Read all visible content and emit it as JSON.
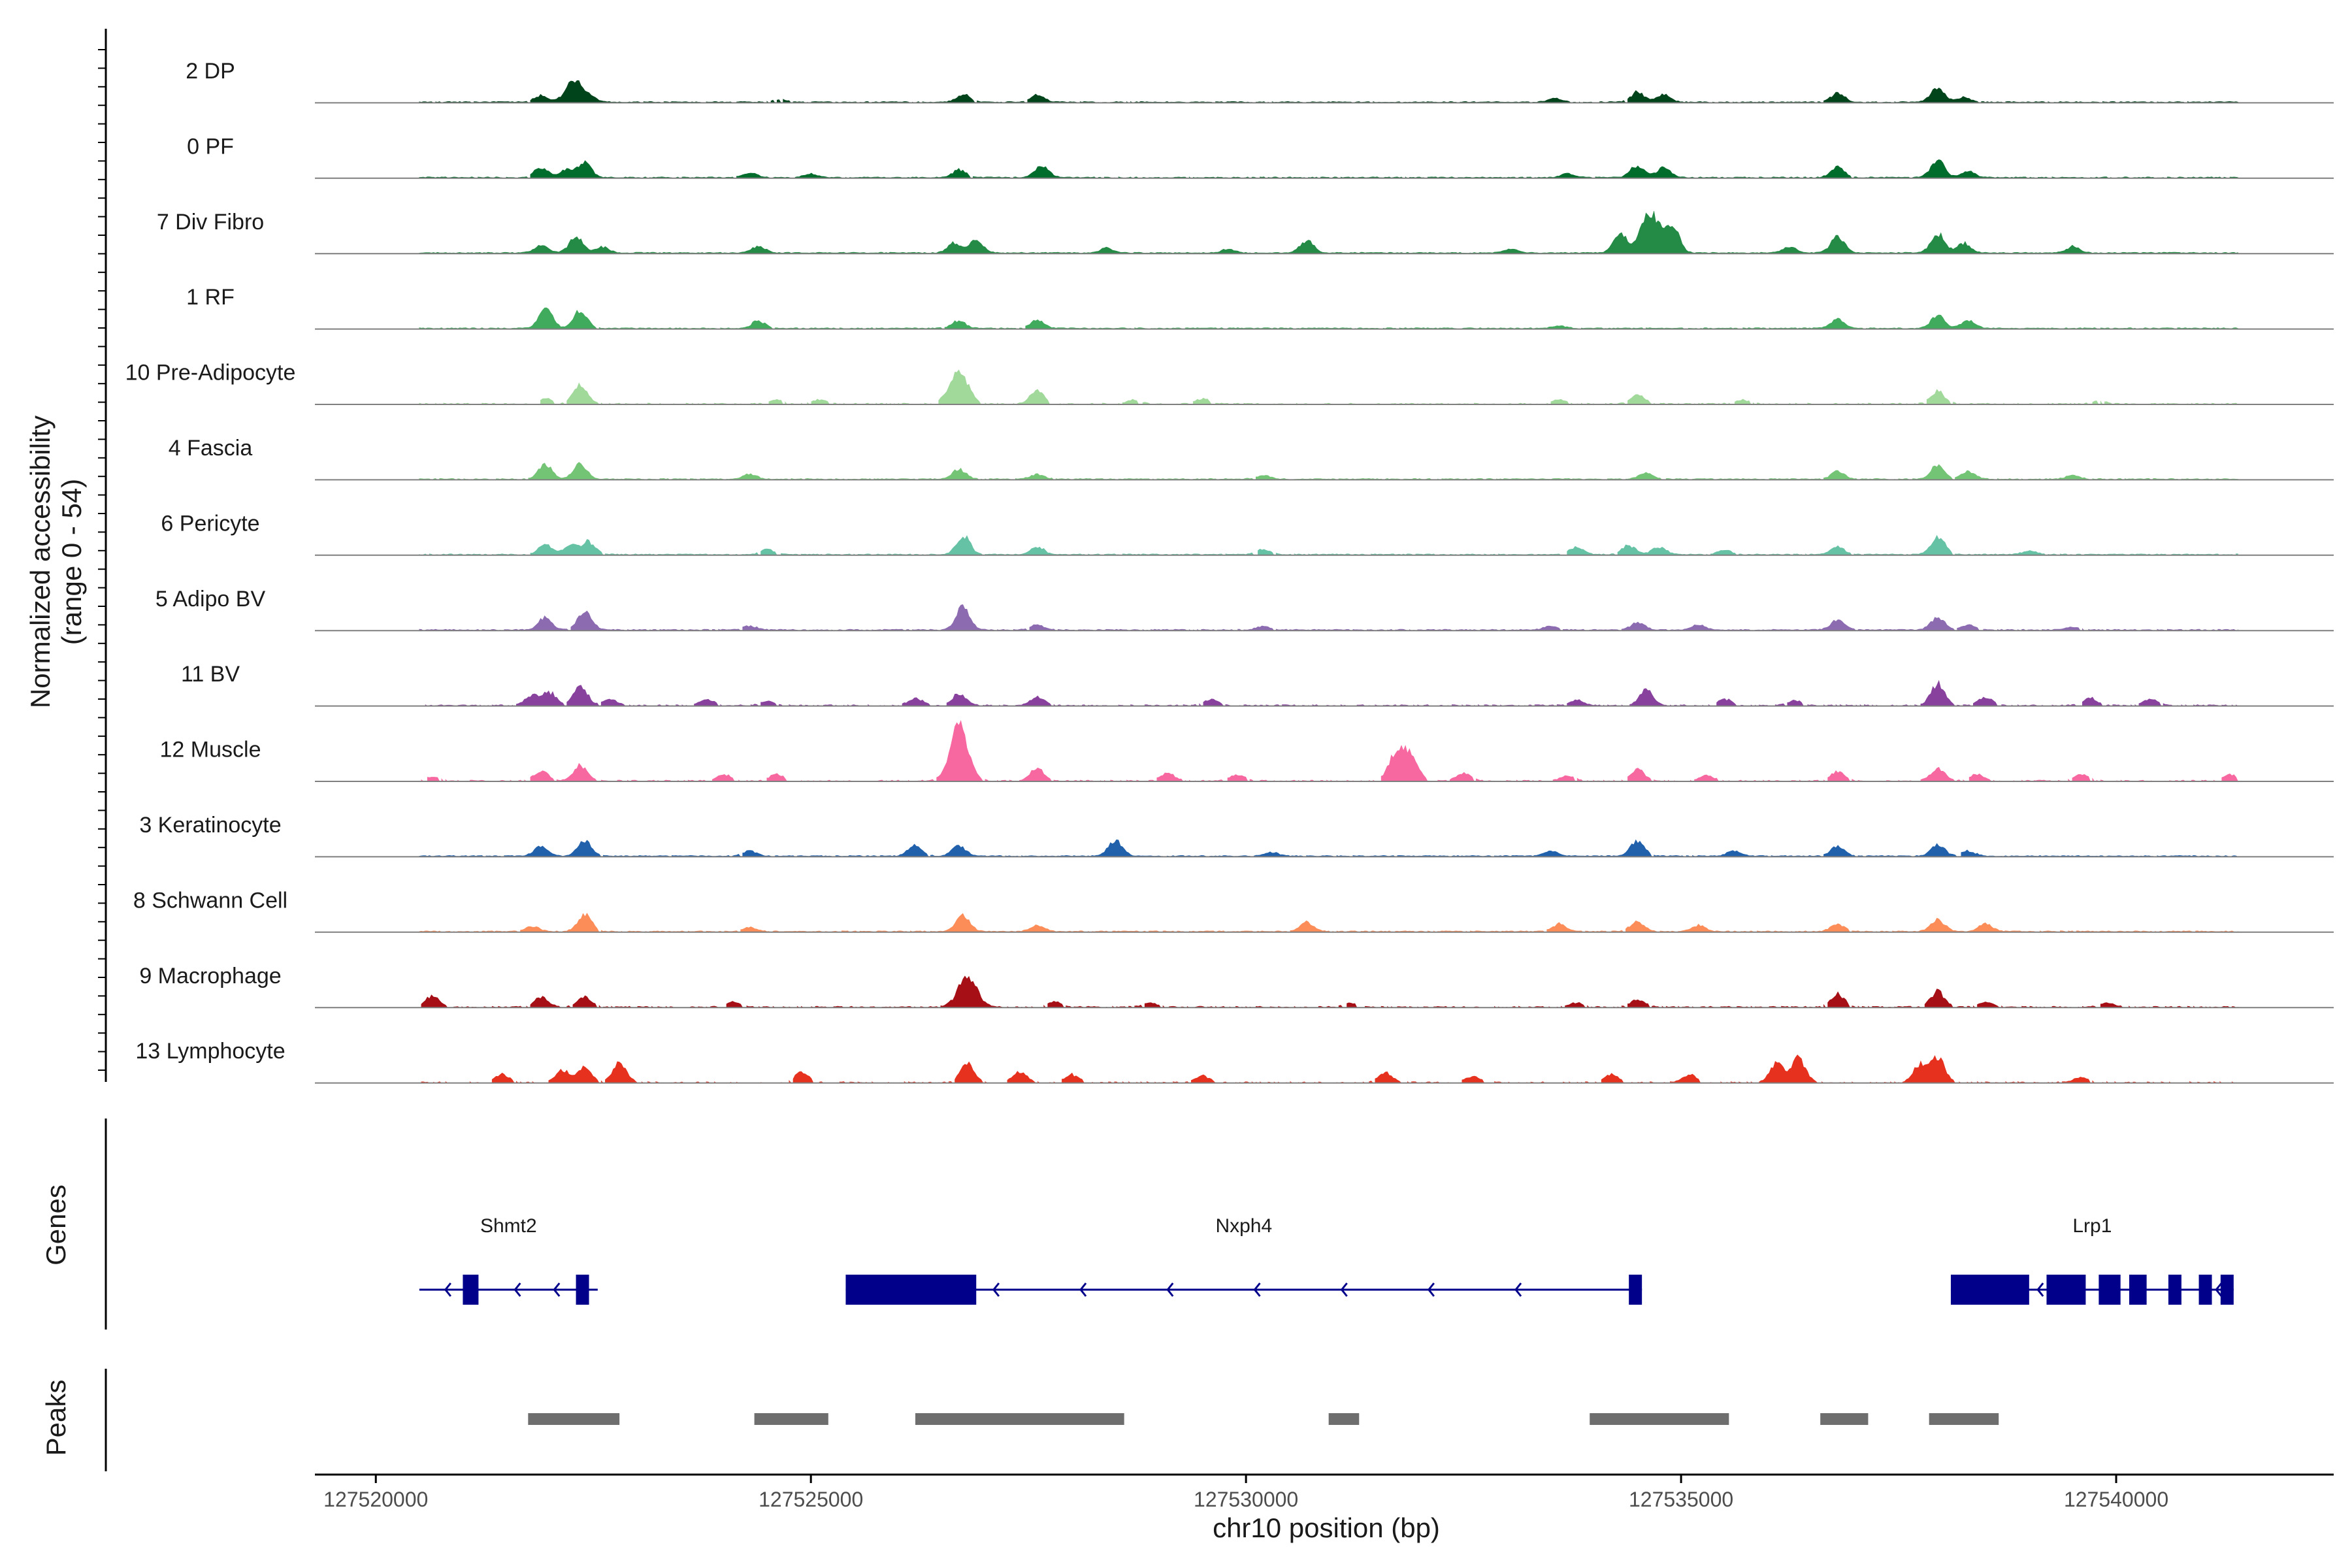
{
  "chart_data": {
    "type": "area",
    "title": "",
    "region": {
      "chrom": "chr10",
      "start": 127519300,
      "end": 127542500
    },
    "xlabel": "chr10 position (bp)",
    "x_ticks": [
      127520000,
      127525000,
      127530000,
      127535000,
      127540000
    ],
    "ylabel_line1": "Normalized accessibility",
    "ylabel_line2": "(range 0 - 54)",
    "ylim": [
      0,
      54
    ],
    "panel_labels": {
      "genes": "Genes",
      "peaks": "Peaks"
    },
    "tracks": [
      {
        "name": "2 DP",
        "color": "#00441b",
        "density": 0.9,
        "peaks": [
          [
            127521900,
            5
          ],
          [
            127522200,
            6
          ],
          [
            127522300,
            14
          ],
          [
            127522450,
            5
          ],
          [
            127524650,
            2
          ],
          [
            127526750,
            6
          ],
          [
            127527600,
            6
          ],
          [
            127533550,
            3
          ],
          [
            127534500,
            8
          ],
          [
            127534800,
            6
          ],
          [
            127536800,
            7
          ],
          [
            127537950,
            12
          ],
          [
            127538250,
            4
          ]
        ]
      },
      {
        "name": "0 PF",
        "color": "#006d2c",
        "density": 0.9,
        "peaks": [
          [
            127521900,
            8
          ],
          [
            127522200,
            6
          ],
          [
            127522400,
            12
          ],
          [
            127524300,
            4
          ],
          [
            127525000,
            3
          ],
          [
            127526700,
            6
          ],
          [
            127527650,
            10
          ],
          [
            127533700,
            3
          ],
          [
            127534500,
            10
          ],
          [
            127534800,
            8
          ],
          [
            127536800,
            8
          ],
          [
            127537950,
            14
          ],
          [
            127538300,
            5
          ]
        ]
      },
      {
        "name": "7 Div Fibro",
        "color": "#238b45",
        "density": 1.0,
        "peaks": [
          [
            127521900,
            6
          ],
          [
            127522300,
            13
          ],
          [
            127522600,
            5
          ],
          [
            127524400,
            5
          ],
          [
            127526650,
            8
          ],
          [
            127526900,
            10
          ],
          [
            127528400,
            4
          ],
          [
            127529800,
            3
          ],
          [
            127530700,
            10
          ],
          [
            127533050,
            3
          ],
          [
            127534300,
            15
          ],
          [
            127534650,
            32
          ],
          [
            127534900,
            20
          ],
          [
            127536250,
            5
          ],
          [
            127536800,
            13
          ],
          [
            127537950,
            16
          ],
          [
            127538250,
            8
          ],
          [
            127539500,
            5
          ]
        ]
      },
      {
        "name": "1 RF",
        "color": "#41ab5d",
        "density": 0.95,
        "peaks": [
          [
            127521950,
            16
          ],
          [
            127522350,
            14
          ],
          [
            127524400,
            6
          ],
          [
            127526700,
            6
          ],
          [
            127527600,
            7
          ],
          [
            127536800,
            7
          ],
          [
            127537950,
            10
          ],
          [
            127538300,
            6
          ],
          [
            127533600,
            2
          ]
        ]
      },
      {
        "name": "10 Pre-Adipocyte",
        "color": "#a1d99b",
        "density": 0.5,
        "peaks": [
          [
            127521950,
            4
          ],
          [
            127522350,
            16
          ],
          [
            127524600,
            3
          ],
          [
            127525100,
            3
          ],
          [
            127526700,
            26
          ],
          [
            127527600,
            10
          ],
          [
            127528700,
            3
          ],
          [
            127529500,
            4
          ],
          [
            127533600,
            3
          ],
          [
            127534500,
            7
          ],
          [
            127535700,
            3
          ],
          [
            127537950,
            10
          ],
          [
            127539800,
            2
          ]
        ]
      },
      {
        "name": "4 Fascia",
        "color": "#74c476",
        "density": 0.9,
        "peaks": [
          [
            127521950,
            12
          ],
          [
            127522350,
            12
          ],
          [
            127524300,
            4
          ],
          [
            127526700,
            8
          ],
          [
            127527600,
            4
          ],
          [
            127530200,
            3
          ],
          [
            127534600,
            5
          ],
          [
            127536800,
            6
          ],
          [
            127537950,
            11
          ],
          [
            127538300,
            6
          ],
          [
            127539500,
            3
          ]
        ]
      },
      {
        "name": "6 Pericyte",
        "color": "#66c2a4",
        "density": 0.9,
        "peaks": [
          [
            127521950,
            8
          ],
          [
            127522250,
            8
          ],
          [
            127522450,
            10
          ],
          [
            127524500,
            4
          ],
          [
            127526750,
            15
          ],
          [
            127527600,
            6
          ],
          [
            127530200,
            4
          ],
          [
            127533800,
            6
          ],
          [
            127534400,
            7
          ],
          [
            127534750,
            6
          ],
          [
            127535500,
            4
          ],
          [
            127536800,
            6
          ],
          [
            127537950,
            15
          ],
          [
            127539000,
            3
          ]
        ]
      },
      {
        "name": "5 Adipo BV",
        "color": "#8c6bb1",
        "density": 0.9,
        "peaks": [
          [
            127521950,
            10
          ],
          [
            127522400,
            16
          ],
          [
            127524300,
            3
          ],
          [
            127526750,
            18
          ],
          [
            127527600,
            4
          ],
          [
            127530200,
            3
          ],
          [
            127533500,
            3
          ],
          [
            127534500,
            6
          ],
          [
            127535200,
            4
          ],
          [
            127536800,
            8
          ],
          [
            127537950,
            10
          ],
          [
            127538300,
            4
          ],
          [
            127539500,
            2
          ]
        ]
      },
      {
        "name": "11 BV",
        "color": "#88419d",
        "density": 0.6,
        "peaks": [
          [
            127521800,
            8
          ],
          [
            127522000,
            10
          ],
          [
            127522350,
            17
          ],
          [
            127522700,
            5
          ],
          [
            127523800,
            5
          ],
          [
            127524500,
            3
          ],
          [
            127526200,
            6
          ],
          [
            127526700,
            9
          ],
          [
            127527600,
            7
          ],
          [
            127529600,
            5
          ],
          [
            127533800,
            4
          ],
          [
            127534600,
            12
          ],
          [
            127535500,
            5
          ],
          [
            127536300,
            4
          ],
          [
            127537950,
            17
          ],
          [
            127538500,
            7
          ],
          [
            127539700,
            6
          ],
          [
            127540400,
            5
          ]
        ]
      },
      {
        "name": "12 Muscle",
        "color": "#f768a1",
        "density": 0.5,
        "peaks": [
          [
            127520650,
            3
          ],
          [
            127521900,
            8
          ],
          [
            127522350,
            12
          ],
          [
            127524000,
            5
          ],
          [
            127524600,
            5
          ],
          [
            127526700,
            42
          ],
          [
            127527600,
            10
          ],
          [
            127529100,
            6
          ],
          [
            127529900,
            5
          ],
          [
            127531700,
            14
          ],
          [
            127531850,
            22
          ],
          [
            127532500,
            6
          ],
          [
            127533700,
            4
          ],
          [
            127534500,
            9
          ],
          [
            127535300,
            4
          ],
          [
            127536800,
            7
          ],
          [
            127537950,
            10
          ],
          [
            127538400,
            5
          ],
          [
            127539600,
            5
          ],
          [
            127541300,
            5
          ]
        ]
      },
      {
        "name": "3 Keratinocyte",
        "color": "#2161ac",
        "density": 0.95,
        "peaks": [
          [
            127521900,
            8
          ],
          [
            127522400,
            12
          ],
          [
            127524300,
            4
          ],
          [
            127526200,
            9
          ],
          [
            127526700,
            8
          ],
          [
            127528500,
            13
          ],
          [
            127530300,
            3
          ],
          [
            127533500,
            4
          ],
          [
            127534500,
            12
          ],
          [
            127535600,
            4
          ],
          [
            127536800,
            8
          ],
          [
            127537950,
            9
          ],
          [
            127538300,
            4
          ]
        ]
      },
      {
        "name": "8 Schwann Cell",
        "color": "#fc8d59",
        "density": 0.9,
        "peaks": [
          [
            127521800,
            4
          ],
          [
            127522400,
            14
          ],
          [
            127524300,
            3
          ],
          [
            127526750,
            12
          ],
          [
            127527600,
            5
          ],
          [
            127530700,
            7
          ],
          [
            127533600,
            6
          ],
          [
            127534500,
            8
          ],
          [
            127535200,
            5
          ],
          [
            127536800,
            6
          ],
          [
            127537950,
            9
          ],
          [
            127538500,
            6
          ]
        ]
      },
      {
        "name": "9 Macrophage",
        "color": "#a50f15",
        "density": 0.6,
        "peaks": [
          [
            127520650,
            9
          ],
          [
            127521900,
            8
          ],
          [
            127522400,
            8
          ],
          [
            127524100,
            4
          ],
          [
            127526800,
            24
          ],
          [
            127527800,
            4
          ],
          [
            127528900,
            3
          ],
          [
            127531200,
            3
          ],
          [
            127533800,
            3
          ],
          [
            127534500,
            6
          ],
          [
            127536800,
            10
          ],
          [
            127537950,
            12
          ],
          [
            127538500,
            4
          ],
          [
            127539900,
            3
          ]
        ]
      },
      {
        "name": "13 Lymphocyte",
        "color": "#e6311f",
        "density": 0.35,
        "peaks": [
          [
            127521450,
            6
          ],
          [
            127522150,
            10
          ],
          [
            127522400,
            12
          ],
          [
            127522800,
            16
          ],
          [
            127524900,
            8
          ],
          [
            127526800,
            14
          ],
          [
            127527400,
            8
          ],
          [
            127528000,
            6
          ],
          [
            127529500,
            5
          ],
          [
            127531600,
            8
          ],
          [
            127532600,
            5
          ],
          [
            127534200,
            6
          ],
          [
            127535100,
            6
          ],
          [
            127536100,
            15
          ],
          [
            127536350,
            19
          ],
          [
            127537750,
            14
          ],
          [
            127537950,
            20
          ],
          [
            127539600,
            4
          ]
        ]
      }
    ],
    "genes": [
      {
        "name": "Shmt2",
        "start": 127520500,
        "end": 127522550,
        "strand": "-",
        "exons": [
          [
            127521000,
            127521180
          ],
          [
            127522300,
            127522450
          ]
        ],
        "arrows": [
          127520800,
          127521600,
          127522050
        ]
      },
      {
        "name": "Nxph4",
        "start": 127525400,
        "end": 127534550,
        "strand": "-",
        "exons": [
          [
            127525400,
            127526900
          ],
          [
            127534400,
            127534550
          ]
        ],
        "arrows": [
          127527100,
          127528100,
          127529100,
          127530100,
          127531100,
          127532100,
          127533100
        ]
      },
      {
        "name": "Lrp1",
        "start": 127538100,
        "end": 127541350,
        "strand": "-",
        "exons": [
          [
            127538100,
            127539000
          ],
          [
            127539200,
            127539650
          ],
          [
            127539800,
            127540050
          ],
          [
            127540150,
            127540350
          ],
          [
            127540600,
            127540750
          ],
          [
            127540950,
            127541100
          ],
          [
            127541200,
            127541350
          ]
        ],
        "arrows": [
          127539100,
          127541150
        ]
      }
    ],
    "peak_regions": [
      [
        127521750,
        127522800
      ],
      [
        127524350,
        127525200
      ],
      [
        127526200,
        127528600
      ],
      [
        127530950,
        127531300
      ],
      [
        127533950,
        127535550
      ],
      [
        127536600,
        127537150
      ],
      [
        127537850,
        127538650
      ]
    ],
    "colors": {
      "gene": "#00008b",
      "peak_bar": "#6e6e6e",
      "baseline": "#7f7f7f",
      "axis": "#000000"
    }
  }
}
